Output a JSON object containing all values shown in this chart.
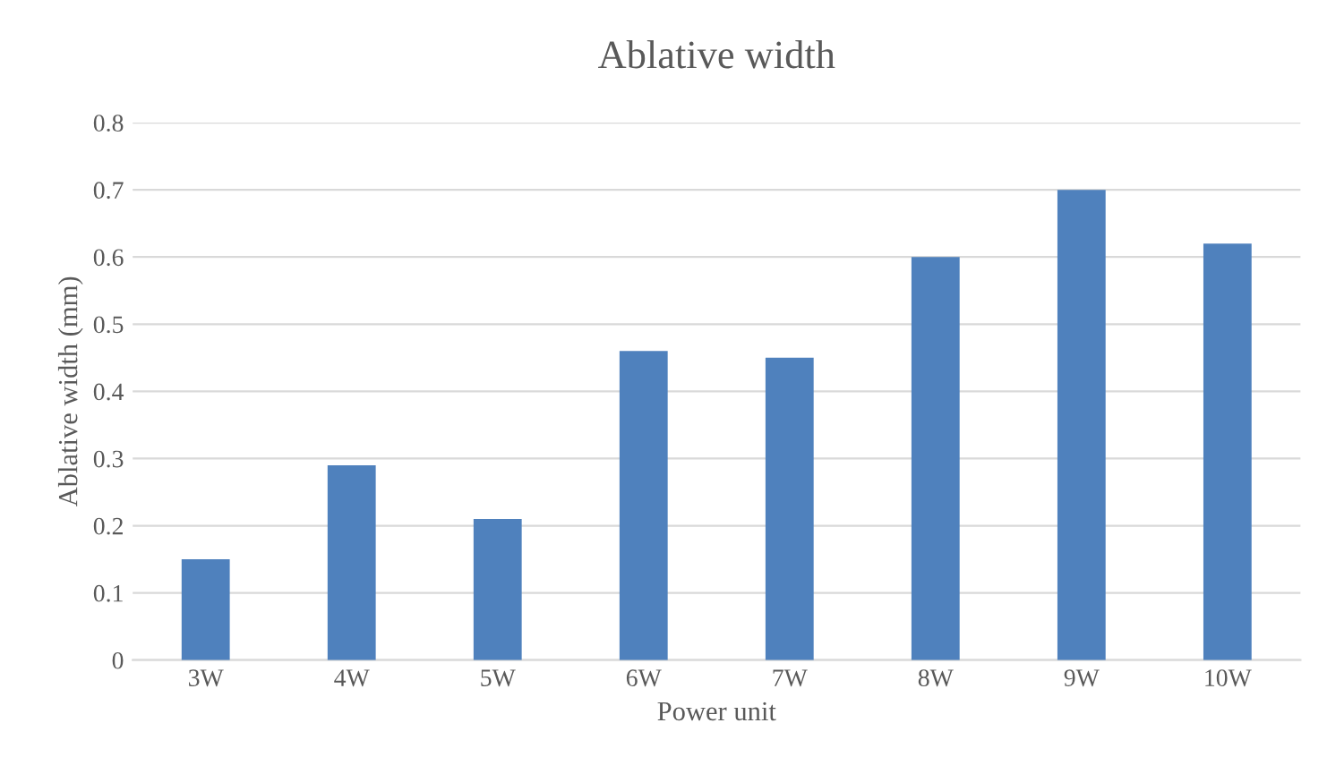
{
  "chart_data": {
    "type": "bar",
    "title": "Ablative width",
    "xlabel": "Power unit",
    "ylabel": "Ablative width (mm)",
    "categories": [
      "3W",
      "4W",
      "5W",
      "6W",
      "7W",
      "8W",
      "9W",
      "10W"
    ],
    "values": [
      0.15,
      0.29,
      0.21,
      0.46,
      0.45,
      0.6,
      0.7,
      0.62
    ],
    "color": "#4f81bd",
    "ylim": [
      0,
      0.8
    ],
    "yticks": [
      {
        "value": 0,
        "label": "0"
      },
      0.1,
      0.2,
      0.3,
      0.4,
      0.5,
      0.6,
      0.7,
      0.8
    ],
    "grid": "y",
    "legend": false
  }
}
